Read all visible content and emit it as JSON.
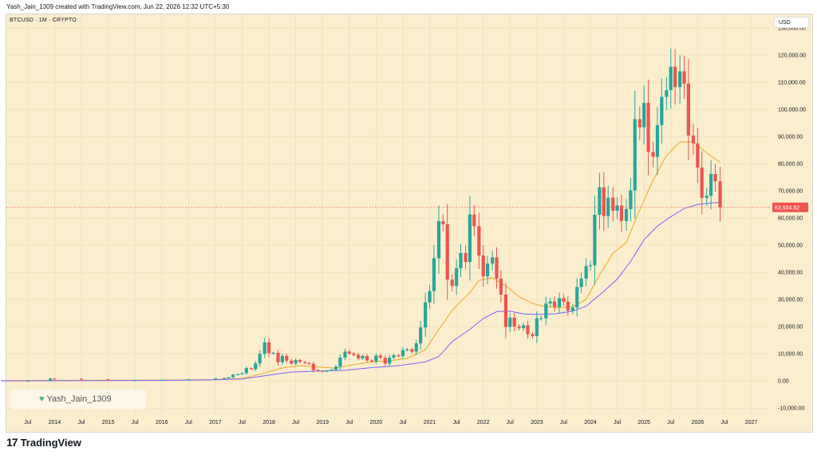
{
  "header": {
    "caption": "Yash_Jain_1309 created with TradingView.com, Jun 22, 2026 12:32 UTC+5:30"
  },
  "symbol": {
    "label": "BTCUSD · 1M · CRYPTO"
  },
  "currency": "USD",
  "watermark": {
    "icon": "heart-icon",
    "text": "Yash_Jain_1309"
  },
  "footer": {
    "logo_mark": "17",
    "brand": "TradingView"
  },
  "colors": {
    "background": "#fbeecd",
    "up": "#26a69a",
    "down": "#ef5350",
    "ma_fast": "#f0a81e",
    "ma_slow": "#7b61ff",
    "price_tag": "#ef5350"
  },
  "chart_data": {
    "type": "candlestick",
    "ylim": [
      -12000,
      135000
    ],
    "y_ticks": [
      -10000,
      0,
      10000,
      20000,
      30000,
      40000,
      50000,
      60000,
      70000,
      80000,
      90000,
      100000,
      110000,
      120000,
      130000
    ],
    "y_tick_labels": [
      "-10,000.00",
      "0.00",
      "10,000.00",
      "20,000.00",
      "30,000.00",
      "40,000.00",
      "50,000.00",
      "60,000.00",
      "70,000.00",
      "80,000.00",
      "90,000.00",
      "100,000.00",
      "110,000.00",
      "120,000.00",
      "130,000.00"
    ],
    "x_range": [
      2013.1,
      2027.35
    ],
    "x_ticks": [
      {
        "label": "Jul",
        "t": 2013.5
      },
      {
        "label": "2014",
        "t": 2014.0
      },
      {
        "label": "Jul",
        "t": 2014.5
      },
      {
        "label": "2015",
        "t": 2015.0
      },
      {
        "label": "Jul",
        "t": 2015.5
      },
      {
        "label": "2016",
        "t": 2016.0
      },
      {
        "label": "Jul",
        "t": 2016.5
      },
      {
        "label": "2017",
        "t": 2017.0
      },
      {
        "label": "Jul",
        "t": 2017.5
      },
      {
        "label": "2018",
        "t": 2018.0
      },
      {
        "label": "Jul",
        "t": 2018.5
      },
      {
        "label": "2019",
        "t": 2019.0
      },
      {
        "label": "Jul",
        "t": 2019.5
      },
      {
        "label": "2020",
        "t": 2020.0
      },
      {
        "label": "Jul",
        "t": 2020.5
      },
      {
        "label": "2021",
        "t": 2021.0
      },
      {
        "label": "Jul",
        "t": 2021.5
      },
      {
        "label": "2022",
        "t": 2022.0
      },
      {
        "label": "Jul",
        "t": 2022.5
      },
      {
        "label": "2023",
        "t": 2023.0
      },
      {
        "label": "Jul",
        "t": 2023.5
      },
      {
        "label": "2024",
        "t": 2024.0
      },
      {
        "label": "Jul",
        "t": 2024.5
      },
      {
        "label": "2025",
        "t": 2025.0
      },
      {
        "label": "Jul",
        "t": 2025.5
      },
      {
        "label": "2026",
        "t": 2026.0
      },
      {
        "label": "Jul",
        "t": 2026.5
      },
      {
        "label": "2027",
        "t": 2027.0
      }
    ],
    "last_price": 63934.82,
    "last_price_label": "63,934.82",
    "closes": [
      [
        2013.0,
        13
      ],
      [
        2013.5,
        90
      ],
      [
        2013.92,
        900
      ],
      [
        2014.0,
        800
      ],
      [
        2014.5,
        600
      ],
      [
        2015.0,
        220
      ],
      [
        2015.5,
        280
      ],
      [
        2016.0,
        430
      ],
      [
        2016.5,
        620
      ],
      [
        2017.0,
        970
      ],
      [
        2017.17,
        1080
      ],
      [
        2017.25,
        1350
      ],
      [
        2017.33,
        2300
      ],
      [
        2017.42,
        2480
      ],
      [
        2017.5,
        2870
      ],
      [
        2017.58,
        4700
      ],
      [
        2017.67,
        4340
      ],
      [
        2017.75,
        6450
      ],
      [
        2017.83,
        10000
      ],
      [
        2017.92,
        14200
      ],
      [
        2018.0,
        10200
      ],
      [
        2018.08,
        10300
      ],
      [
        2018.17,
        6900
      ],
      [
        2018.25,
        9200
      ],
      [
        2018.33,
        7500
      ],
      [
        2018.42,
        6400
      ],
      [
        2018.5,
        7700
      ],
      [
        2018.58,
        7000
      ],
      [
        2018.67,
        6600
      ],
      [
        2018.75,
        6300
      ],
      [
        2018.83,
        4000
      ],
      [
        2018.92,
        3700
      ],
      [
        2019.0,
        3450
      ],
      [
        2019.08,
        3800
      ],
      [
        2019.17,
        4100
      ],
      [
        2019.25,
        5300
      ],
      [
        2019.33,
        8600
      ],
      [
        2019.42,
        10800
      ],
      [
        2019.5,
        10100
      ],
      [
        2019.58,
        9600
      ],
      [
        2019.67,
        8300
      ],
      [
        2019.75,
        9150
      ],
      [
        2019.83,
        7550
      ],
      [
        2019.92,
        7200
      ],
      [
        2020.0,
        9350
      ],
      [
        2020.08,
        8550
      ],
      [
        2020.17,
        6400
      ],
      [
        2020.25,
        8600
      ],
      [
        2020.33,
        9450
      ],
      [
        2020.42,
        9150
      ],
      [
        2020.5,
        11350
      ],
      [
        2020.58,
        11650
      ],
      [
        2020.67,
        10800
      ],
      [
        2020.75,
        13800
      ],
      [
        2020.83,
        19700
      ],
      [
        2020.92,
        28950
      ],
      [
        2021.0,
        33100
      ],
      [
        2021.08,
        45200
      ],
      [
        2021.17,
        58800
      ],
      [
        2021.25,
        57700
      ],
      [
        2021.33,
        37300
      ],
      [
        2021.42,
        35000
      ],
      [
        2021.5,
        41500
      ],
      [
        2021.58,
        47100
      ],
      [
        2021.67,
        43800
      ],
      [
        2021.75,
        61300
      ],
      [
        2021.83,
        57000
      ],
      [
        2021.92,
        46200
      ],
      [
        2022.0,
        38500
      ],
      [
        2022.08,
        43200
      ],
      [
        2022.17,
        45500
      ],
      [
        2022.25,
        37700
      ],
      [
        2022.33,
        31800
      ],
      [
        2022.42,
        19900
      ],
      [
        2022.5,
        23300
      ],
      [
        2022.58,
        20000
      ],
      [
        2022.67,
        19400
      ],
      [
        2022.75,
        20500
      ],
      [
        2022.83,
        17200
      ],
      [
        2022.92,
        16500
      ],
      [
        2023.0,
        23100
      ],
      [
        2023.08,
        23100
      ],
      [
        2023.17,
        28500
      ],
      [
        2023.25,
        29300
      ],
      [
        2023.33,
        27200
      ],
      [
        2023.42,
        30500
      ],
      [
        2023.5,
        29200
      ],
      [
        2023.58,
        25900
      ],
      [
        2023.67,
        27000
      ],
      [
        2023.75,
        34600
      ],
      [
        2023.83,
        37700
      ],
      [
        2023.92,
        42300
      ],
      [
        2024.0,
        42600
      ],
      [
        2024.08,
        61200
      ],
      [
        2024.17,
        71300
      ],
      [
        2024.25,
        60700
      ],
      [
        2024.33,
        67500
      ],
      [
        2024.42,
        62700
      ],
      [
        2024.5,
        64600
      ],
      [
        2024.58,
        58900
      ],
      [
        2024.67,
        63300
      ],
      [
        2024.75,
        70200
      ],
      [
        2024.83,
        96400
      ],
      [
        2024.92,
        93400
      ],
      [
        2025.0,
        102400
      ],
      [
        2025.08,
        84300
      ],
      [
        2025.17,
        82500
      ],
      [
        2025.25,
        94200
      ],
      [
        2025.33,
        104600
      ],
      [
        2025.42,
        107100
      ],
      [
        2025.5,
        115700
      ],
      [
        2025.58,
        108200
      ],
      [
        2025.67,
        114000
      ],
      [
        2025.75,
        109500
      ],
      [
        2025.83,
        90400
      ],
      [
        2025.92,
        87500
      ],
      [
        2026.0,
        78600
      ],
      [
        2026.08,
        67400
      ],
      [
        2026.17,
        68200
      ],
      [
        2026.25,
        76200
      ],
      [
        2026.33,
        73500
      ],
      [
        2026.42,
        63900
      ]
    ],
    "overlays": [
      {
        "name": "ma-fast",
        "color": "#f0a81e",
        "points": [
          [
            2013.0,
            100
          ],
          [
            2016.0,
            300
          ],
          [
            2017.0,
            500
          ],
          [
            2017.5,
            900
          ],
          [
            2017.92,
            2900
          ],
          [
            2018.25,
            4800
          ],
          [
            2018.58,
            5600
          ],
          [
            2018.92,
            5100
          ],
          [
            2019.25,
            4700
          ],
          [
            2019.58,
            6000
          ],
          [
            2019.92,
            7000
          ],
          [
            2020.25,
            7400
          ],
          [
            2020.58,
            8300
          ],
          [
            2020.92,
            11500
          ],
          [
            2021.17,
            19000
          ],
          [
            2021.42,
            26000
          ],
          [
            2021.75,
            32500
          ],
          [
            2021.92,
            37000
          ],
          [
            2022.17,
            38000
          ],
          [
            2022.42,
            35000
          ],
          [
            2022.67,
            31000
          ],
          [
            2022.92,
            28500
          ],
          [
            2023.17,
            27300
          ],
          [
            2023.42,
            27000
          ],
          [
            2023.67,
            27300
          ],
          [
            2023.92,
            30000
          ],
          [
            2024.17,
            39000
          ],
          [
            2024.42,
            47000
          ],
          [
            2024.67,
            51000
          ],
          [
            2024.92,
            63000
          ],
          [
            2025.17,
            74000
          ],
          [
            2025.42,
            83000
          ],
          [
            2025.67,
            88000
          ],
          [
            2025.92,
            88000
          ],
          [
            2026.17,
            84000
          ],
          [
            2026.42,
            80500
          ]
        ]
      },
      {
        "name": "ma-slow",
        "color": "#7b61ff",
        "points": [
          [
            2013.0,
            30
          ],
          [
            2016.0,
            200
          ],
          [
            2017.0,
            400
          ],
          [
            2017.5,
            700
          ],
          [
            2017.92,
            1900
          ],
          [
            2018.42,
            3300
          ],
          [
            2018.92,
            3600
          ],
          [
            2019.42,
            3900
          ],
          [
            2019.92,
            4900
          ],
          [
            2020.42,
            5600
          ],
          [
            2020.92,
            7000
          ],
          [
            2021.17,
            9000
          ],
          [
            2021.42,
            14500
          ],
          [
            2021.75,
            19000
          ],
          [
            2022.0,
            23000
          ],
          [
            2022.25,
            25500
          ],
          [
            2022.5,
            25700
          ],
          [
            2022.75,
            24700
          ],
          [
            2023.0,
            24500
          ],
          [
            2023.33,
            24700
          ],
          [
            2023.67,
            25700
          ],
          [
            2023.92,
            27500
          ],
          [
            2024.25,
            33000
          ],
          [
            2024.5,
            37500
          ],
          [
            2024.75,
            44000
          ],
          [
            2025.0,
            52000
          ],
          [
            2025.25,
            57000
          ],
          [
            2025.5,
            60500
          ],
          [
            2025.75,
            63500
          ],
          [
            2026.0,
            65000
          ],
          [
            2026.25,
            65500
          ],
          [
            2026.42,
            65800
          ]
        ]
      }
    ]
  }
}
